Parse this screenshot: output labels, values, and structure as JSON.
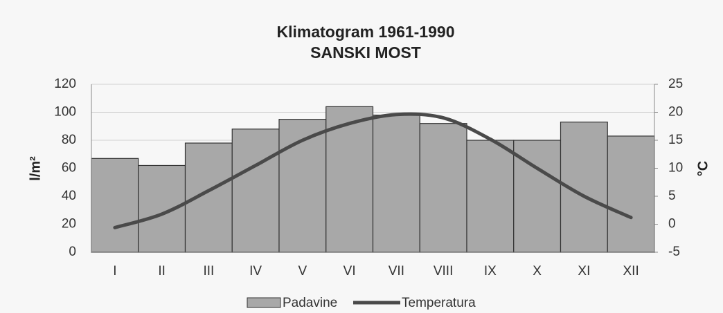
{
  "chart_data": {
    "type": "bar-line",
    "title": "Klimatogram 1961-1990",
    "subtitle": "SANSKI MOST",
    "ylabel": "l/m²",
    "y2label": "°C",
    "categories": [
      "I",
      "II",
      "III",
      "IV",
      "V",
      "VI",
      "VII",
      "VIII",
      "IX",
      "X",
      "XI",
      "XII"
    ],
    "series": [
      {
        "name": "Padavine",
        "type": "bar",
        "color": "#a8a8a8",
        "axis": "y",
        "values": [
          67,
          62,
          78,
          88,
          95,
          104,
          98,
          92,
          80,
          80,
          93,
          83
        ]
      },
      {
        "name": "Temperatura",
        "type": "line",
        "color": "#4a4a4a",
        "axis": "y2",
        "values": [
          -0.6,
          1.8,
          6,
          10.5,
          15,
          18,
          19.6,
          19,
          15.2,
          10,
          5,
          1.2
        ]
      }
    ],
    "ylim": [
      0,
      120
    ],
    "yticks": [
      0,
      20,
      40,
      60,
      80,
      100,
      120
    ],
    "y2lim": [
      -5,
      25
    ],
    "y2ticks": [
      -5,
      0,
      5,
      10,
      15,
      20,
      25
    ],
    "grid": true,
    "legend": "bottom"
  }
}
